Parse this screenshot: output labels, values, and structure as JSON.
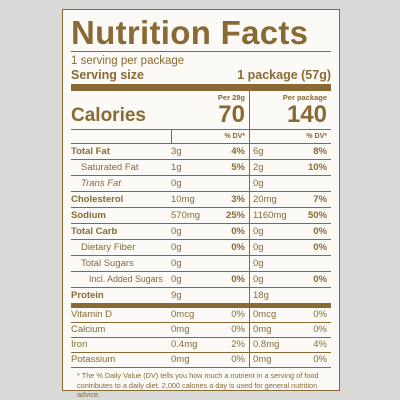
{
  "title": "Nutrition Facts",
  "servings": "1 serving per package",
  "serving_size": {
    "label": "Serving size",
    "value": "1 package (57g)"
  },
  "calories": {
    "label": "Calories",
    "headers": [
      "Per 28g",
      "Per package"
    ],
    "values": [
      "70",
      "140"
    ]
  },
  "dv_header": "% DV*",
  "rows": [
    {
      "name": "Total Fat",
      "amount_1": "3g",
      "dv_1": "4%",
      "amount_2": "6g",
      "dv_2": "8%"
    },
    {
      "name": "Saturated Fat",
      "amount_1": "1g",
      "dv_1": "5%",
      "amount_2": "2g",
      "dv_2": "10%"
    },
    {
      "name": "Trans Fat",
      "amount_1": "0g",
      "amount_2": "0g"
    },
    {
      "name": "Cholesterol",
      "amount_1": "10mg",
      "dv_1": "3%",
      "amount_2": "20mg",
      "dv_2": "7%"
    },
    {
      "name": "Sodium",
      "amount_1": "570mg",
      "dv_1": "25%",
      "amount_2": "1160mg",
      "dv_2": "50%"
    },
    {
      "name": "Total Carb",
      "amount_1": "0g",
      "dv_1": "0%",
      "amount_2": "0g",
      "dv_2": "0%"
    },
    {
      "name": "Dietary Fiber",
      "amount_1": "0g",
      "dv_1": "0%",
      "amount_2": "0g",
      "dv_2": "0%"
    },
    {
      "name": "Total Sugars",
      "amount_1": "0g",
      "amount_2": "0g"
    },
    {
      "name": "Incl. Added Sugars",
      "amount_1": "0g",
      "dv_1": "0%",
      "amount_2": "0g",
      "dv_2": "0%"
    },
    {
      "name": "Protein",
      "amount_1": "9g",
      "amount_2": "18g"
    }
  ],
  "micronutrients": [
    {
      "name": "Vitamin D",
      "amount_1": "0mcg",
      "dv_1": "0%",
      "amount_2": "0mcg",
      "dv_2": "0%"
    },
    {
      "name": "Calcium",
      "amount_1": "0mg",
      "dv_1": "0%",
      "amount_2": "0mg",
      "dv_2": "0%"
    },
    {
      "name": "Iron",
      "amount_1": "0.4mg",
      "dv_1": "2%",
      "amount_2": "0.8mg",
      "dv_2": "4%"
    },
    {
      "name": "Potassium",
      "amount_1": "0mg",
      "dv_1": "0%",
      "amount_2": "0mg",
      "dv_2": "0%"
    }
  ],
  "footnote": "* The % Daily Value (DV) tells you how much a nutrient in a serving of food contributes to a daily diet. 2,000 calories a day is used for general nutrition advice."
}
